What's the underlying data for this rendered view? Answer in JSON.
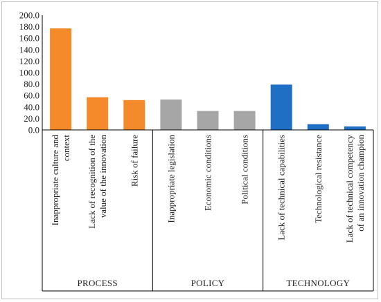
{
  "chart_data": {
    "type": "bar",
    "title": "",
    "xlabel": "",
    "ylabel": "",
    "ylim": [
      0,
      200
    ],
    "ytick_step": 20,
    "ytick_labels": [
      "0.0",
      "20.0",
      "40.0",
      "60.0",
      "80.0",
      "100.0",
      "120.0",
      "140.0",
      "160.0",
      "180.0",
      "200.0"
    ],
    "grid": false,
    "legend": "none",
    "categories": [
      {
        "line1": "Inappropriate culture and",
        "line2": "context",
        "value": 177,
        "group": 0
      },
      {
        "line1": "Lack of recognition of the",
        "line2": "value of the innovation",
        "value": 57,
        "group": 0
      },
      {
        "line1": "Risk of failure",
        "line2": "",
        "value": 52,
        "group": 0
      },
      {
        "line1": "Inappropriate legislation",
        "line2": "",
        "value": 53,
        "group": 1
      },
      {
        "line1": "Economic conditions",
        "line2": "",
        "value": 33,
        "group": 1
      },
      {
        "line1": "Political conditions",
        "line2": "",
        "value": 33,
        "group": 1
      },
      {
        "line1": "Lack of technical capabilities",
        "line2": "",
        "value": 79,
        "group": 2
      },
      {
        "line1": "Technological resistance",
        "line2": "",
        "value": 10,
        "group": 2
      },
      {
        "line1": "Lack of technical competency",
        "line2": "of an innovation champion",
        "value": 6,
        "group": 2
      }
    ],
    "groups": [
      {
        "label": "PROCESS",
        "color": "#f58a2a"
      },
      {
        "label": "POLICY",
        "color": "#a6a6a6"
      },
      {
        "label": "TECHNOLOGY",
        "color": "#1f6fc4"
      }
    ]
  }
}
